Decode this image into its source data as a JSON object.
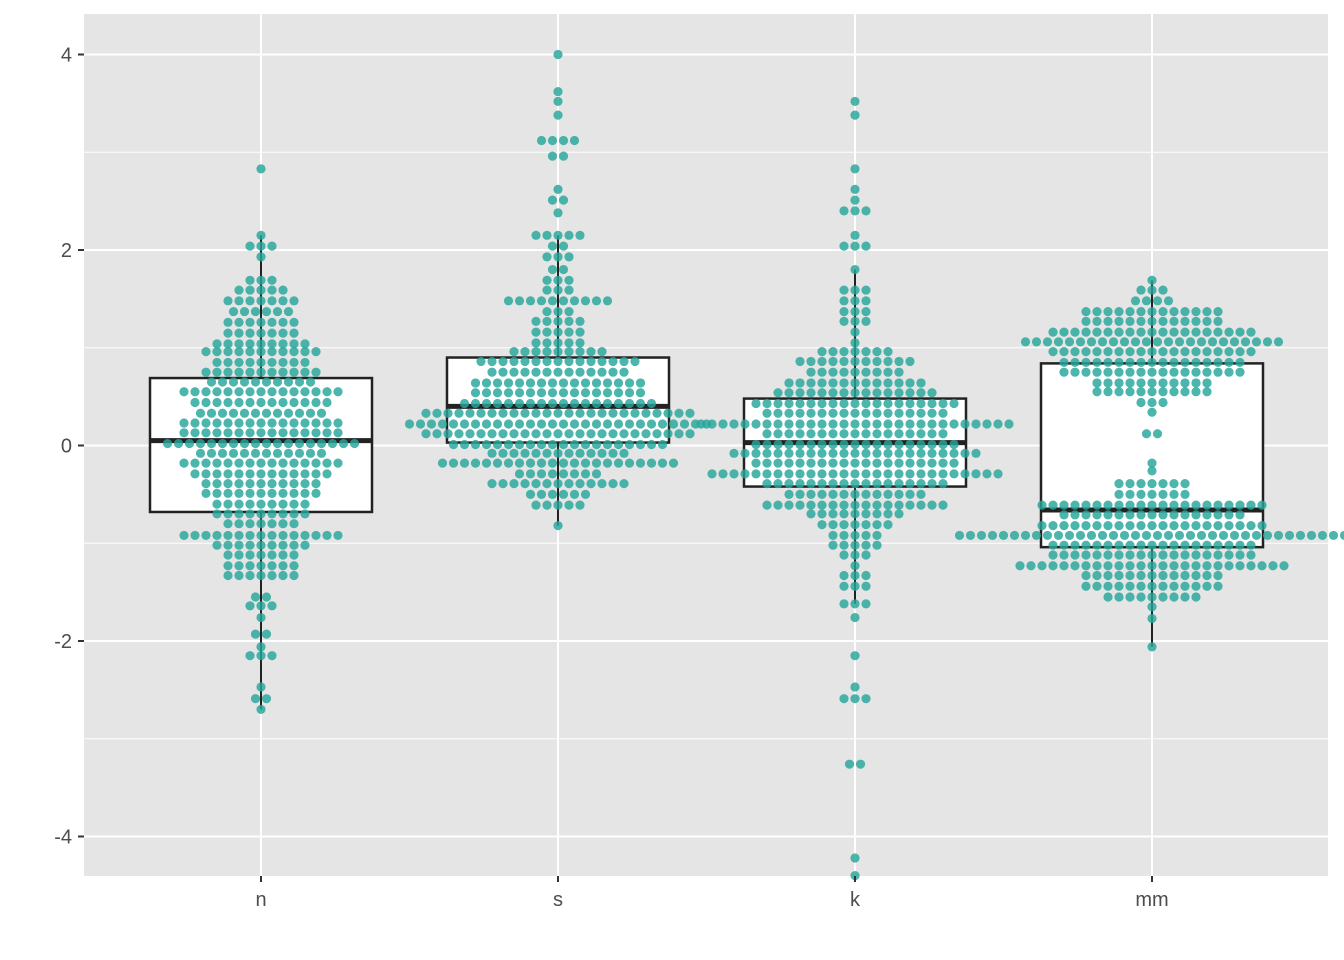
{
  "chart_data": {
    "type": "box",
    "title": "",
    "xlabel": "",
    "ylabel": "",
    "categories": [
      "n",
      "s",
      "k",
      "mm"
    ],
    "y_ticks": [
      -4,
      -2,
      0,
      2,
      4
    ],
    "ylim": [
      -4.4,
      4.4
    ],
    "grid": true,
    "legend": "none",
    "colors": {
      "panel": "#e5e5e5",
      "grid": "#ffffff",
      "dot": "#26a69a",
      "box_fill": "#ffffff",
      "box_stroke": "#222222",
      "tick": "#4d4d4d"
    },
    "boxes": [
      {
        "category": "n",
        "whisker_low": -2.7,
        "q1": -0.68,
        "median": 0.05,
        "q3": 0.69,
        "whisker_high": 2.15
      },
      {
        "category": "s",
        "whisker_low": -0.82,
        "q1": 0.03,
        "median": 0.4,
        "q3": 0.9,
        "whisker_high": 2.15
      },
      {
        "category": "k",
        "whisker_low": -1.62,
        "q1": -0.42,
        "median": 0.03,
        "q3": 0.48,
        "whisker_high": 1.8
      },
      {
        "category": "mm",
        "whisker_low": -2.06,
        "q1": -1.04,
        "median": -0.66,
        "q3": 0.84,
        "whisker_high": 1.69
      }
    ],
    "dots": [
      {
        "category": "n",
        "rows": [
          {
            "y": 2.83,
            "n": 1
          },
          {
            "y": 2.15,
            "n": 1
          },
          {
            "y": 2.04,
            "n": 3
          },
          {
            "y": 1.93,
            "n": 1
          },
          {
            "y": 1.69,
            "n": 3
          },
          {
            "y": 1.59,
            "n": 5
          },
          {
            "y": 1.48,
            "n": 7
          },
          {
            "y": 1.37,
            "n": 6
          },
          {
            "y": 1.26,
            "n": 7
          },
          {
            "y": 1.15,
            "n": 7
          },
          {
            "y": 1.04,
            "n": 9
          },
          {
            "y": 0.96,
            "n": 11
          },
          {
            "y": 0.85,
            "n": 9
          },
          {
            "y": 0.75,
            "n": 11
          },
          {
            "y": 0.65,
            "n": 10
          },
          {
            "y": 0.55,
            "n": 15
          },
          {
            "y": 0.44,
            "n": 13
          },
          {
            "y": 0.33,
            "n": 12
          },
          {
            "y": 0.23,
            "n": 15
          },
          {
            "y": 0.13,
            "n": 15
          },
          {
            "y": 0.02,
            "n": 18
          },
          {
            "y": -0.08,
            "n": 12
          },
          {
            "y": -0.18,
            "n": 15
          },
          {
            "y": -0.29,
            "n": 13
          },
          {
            "y": -0.39,
            "n": 11
          },
          {
            "y": -0.49,
            "n": 11
          },
          {
            "y": -0.6,
            "n": 9
          },
          {
            "y": -0.7,
            "n": 9
          },
          {
            "y": -0.8,
            "n": 7
          },
          {
            "y": -0.92,
            "n": 15
          },
          {
            "y": -1.02,
            "n": 9
          },
          {
            "y": -1.12,
            "n": 7
          },
          {
            "y": -1.23,
            "n": 7
          },
          {
            "y": -1.33,
            "n": 7
          },
          {
            "y": -1.55,
            "n": 2
          },
          {
            "y": -1.64,
            "n": 3
          },
          {
            "y": -1.76,
            "n": 1
          },
          {
            "y": -1.93,
            "n": 2
          },
          {
            "y": -2.06,
            "n": 1
          },
          {
            "y": -2.15,
            "n": 3
          },
          {
            "y": -2.47,
            "n": 1
          },
          {
            "y": -2.59,
            "n": 2
          },
          {
            "y": -2.7,
            "n": 1
          }
        ]
      },
      {
        "category": "s",
        "rows": [
          {
            "y": 4.0,
            "n": 1
          },
          {
            "y": 3.62,
            "n": 1
          },
          {
            "y": 3.52,
            "n": 1
          },
          {
            "y": 3.38,
            "n": 1
          },
          {
            "y": 3.12,
            "n": 4
          },
          {
            "y": 2.96,
            "n": 2
          },
          {
            "y": 2.62,
            "n": 1
          },
          {
            "y": 2.51,
            "n": 2
          },
          {
            "y": 2.38,
            "n": 1
          },
          {
            "y": 2.15,
            "n": 5
          },
          {
            "y": 2.04,
            "n": 2
          },
          {
            "y": 1.93,
            "n": 3
          },
          {
            "y": 1.8,
            "n": 2
          },
          {
            "y": 1.69,
            "n": 3
          },
          {
            "y": 1.59,
            "n": 3
          },
          {
            "y": 1.48,
            "n": 10
          },
          {
            "y": 1.37,
            "n": 3
          },
          {
            "y": 1.27,
            "n": 5
          },
          {
            "y": 1.16,
            "n": 5
          },
          {
            "y": 1.05,
            "n": 5
          },
          {
            "y": 0.96,
            "n": 9
          },
          {
            "y": 0.86,
            "n": 15
          },
          {
            "y": 0.75,
            "n": 13
          },
          {
            "y": 0.64,
            "n": 16
          },
          {
            "y": 0.54,
            "n": 16
          },
          {
            "y": 0.43,
            "n": 18
          },
          {
            "y": 0.33,
            "n": 25
          },
          {
            "y": 0.22,
            "n": 28
          },
          {
            "y": 0.12,
            "n": 25
          },
          {
            "y": 0.01,
            "n": 20
          },
          {
            "y": -0.08,
            "n": 13
          },
          {
            "y": -0.18,
            "n": 22
          },
          {
            "y": -0.29,
            "n": 8
          },
          {
            "y": -0.39,
            "n": 13
          },
          {
            "y": -0.5,
            "n": 6
          },
          {
            "y": -0.61,
            "n": 5
          },
          {
            "y": -0.82,
            "n": 1
          }
        ]
      },
      {
        "category": "k",
        "rows": [
          {
            "y": 3.52,
            "n": 1
          },
          {
            "y": 3.38,
            "n": 1
          },
          {
            "y": 2.83,
            "n": 1
          },
          {
            "y": 2.62,
            "n": 1
          },
          {
            "y": 2.51,
            "n": 1
          },
          {
            "y": 2.4,
            "n": 3
          },
          {
            "y": 2.15,
            "n": 1
          },
          {
            "y": 2.04,
            "n": 3
          },
          {
            "y": 1.8,
            "n": 1
          },
          {
            "y": 1.59,
            "n": 3
          },
          {
            "y": 1.48,
            "n": 3
          },
          {
            "y": 1.37,
            "n": 3
          },
          {
            "y": 1.27,
            "n": 3
          },
          {
            "y": 1.16,
            "n": 1
          },
          {
            "y": 1.05,
            "n": 1
          },
          {
            "y": 0.96,
            "n": 7
          },
          {
            "y": 0.86,
            "n": 11
          },
          {
            "y": 0.75,
            "n": 9
          },
          {
            "y": 0.64,
            "n": 13
          },
          {
            "y": 0.54,
            "n": 15
          },
          {
            "y": 0.43,
            "n": 19
          },
          {
            "y": 0.33,
            "n": 17
          },
          {
            "y": 0.22,
            "n": 29
          },
          {
            "y": 0.12,
            "n": 17
          },
          {
            "y": 0.01,
            "n": 19
          },
          {
            "y": -0.08,
            "n": 23
          },
          {
            "y": -0.18,
            "n": 19
          },
          {
            "y": -0.29,
            "n": 27
          },
          {
            "y": -0.39,
            "n": 17
          },
          {
            "y": -0.5,
            "n": 13
          },
          {
            "y": -0.61,
            "n": 17
          },
          {
            "y": -0.7,
            "n": 9
          },
          {
            "y": -0.81,
            "n": 7
          },
          {
            "y": -0.92,
            "n": 5
          },
          {
            "y": -1.02,
            "n": 5
          },
          {
            "y": -1.12,
            "n": 3
          },
          {
            "y": -1.23,
            "n": 1
          },
          {
            "y": -1.33,
            "n": 3
          },
          {
            "y": -1.44,
            "n": 3
          },
          {
            "y": -1.62,
            "n": 3
          },
          {
            "y": -1.76,
            "n": 1
          },
          {
            "y": -2.15,
            "n": 1
          },
          {
            "y": -2.47,
            "n": 1
          },
          {
            "y": -2.59,
            "n": 3
          },
          {
            "y": -3.26,
            "n": 2
          },
          {
            "y": -4.22,
            "n": 1
          },
          {
            "y": -4.4,
            "n": 1
          }
        ]
      },
      {
        "category": "mm",
        "rows": [
          {
            "y": 1.69,
            "n": 1
          },
          {
            "y": 1.59,
            "n": 3
          },
          {
            "y": 1.48,
            "n": 4
          },
          {
            "y": 1.37,
            "n": 13
          },
          {
            "y": 1.27,
            "n": 13
          },
          {
            "y": 1.16,
            "n": 19
          },
          {
            "y": 1.06,
            "n": 24
          },
          {
            "y": 0.96,
            "n": 19
          },
          {
            "y": 0.85,
            "n": 17
          },
          {
            "y": 0.75,
            "n": 17
          },
          {
            "y": 0.64,
            "n": 11
          },
          {
            "y": 0.55,
            "n": 11
          },
          {
            "y": 0.44,
            "n": 3
          },
          {
            "y": 0.34,
            "n": 1
          },
          {
            "y": 0.12,
            "n": 2
          },
          {
            "y": -0.18,
            "n": 1
          },
          {
            "y": -0.26,
            "n": 1
          },
          {
            "y": -0.39,
            "n": 7
          },
          {
            "y": -0.5,
            "n": 7
          },
          {
            "y": -0.61,
            "n": 21
          },
          {
            "y": -0.71,
            "n": 17
          },
          {
            "y": -0.82,
            "n": 21
          },
          {
            "y": -0.92,
            "n": 36
          },
          {
            "y": -1.02,
            "n": 19
          },
          {
            "y": -1.12,
            "n": 19
          },
          {
            "y": -1.23,
            "n": 25
          },
          {
            "y": -1.33,
            "n": 13
          },
          {
            "y": -1.44,
            "n": 13
          },
          {
            "y": -1.55,
            "n": 9
          },
          {
            "y": -1.65,
            "n": 1
          },
          {
            "y": -1.77,
            "n": 1
          },
          {
            "y": -2.06,
            "n": 1
          }
        ]
      }
    ]
  }
}
